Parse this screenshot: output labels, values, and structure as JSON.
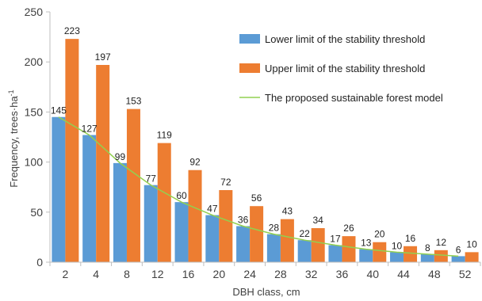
{
  "chart_data": {
    "type": "bar",
    "categories": [
      "2",
      "4",
      "8",
      "12",
      "16",
      "20",
      "24",
      "28",
      "32",
      "36",
      "40",
      "44",
      "48",
      "52"
    ],
    "series": [
      {
        "name": "Lower limit of the stability threshold",
        "kind": "bar",
        "color": "#5B9BD5",
        "values": [
          145,
          127,
          99,
          77,
          60,
          47,
          36,
          28,
          22,
          17,
          13,
          10,
          8,
          6
        ]
      },
      {
        "name": "Upper limit of the stability threshold",
        "kind": "bar",
        "color": "#ED7D31",
        "values": [
          223,
          197,
          153,
          119,
          92,
          72,
          56,
          43,
          34,
          26,
          20,
          16,
          12,
          10
        ]
      },
      {
        "name": "The proposed sustainable forest model",
        "kind": "line",
        "color": "#92D050",
        "values": [
          145,
          127,
          99,
          77,
          60,
          47,
          36,
          28,
          22,
          17,
          13,
          10,
          8,
          6
        ]
      }
    ],
    "xlabel": "DBH class, cm",
    "ylabel": "Frequency, trees·ha",
    "ylabel_superscript": "-1",
    "ylim": [
      0,
      250
    ],
    "yticks": [
      "0",
      "50",
      "100",
      "150",
      "200",
      "250"
    ],
    "grid": false,
    "legend_position": "top-right"
  }
}
